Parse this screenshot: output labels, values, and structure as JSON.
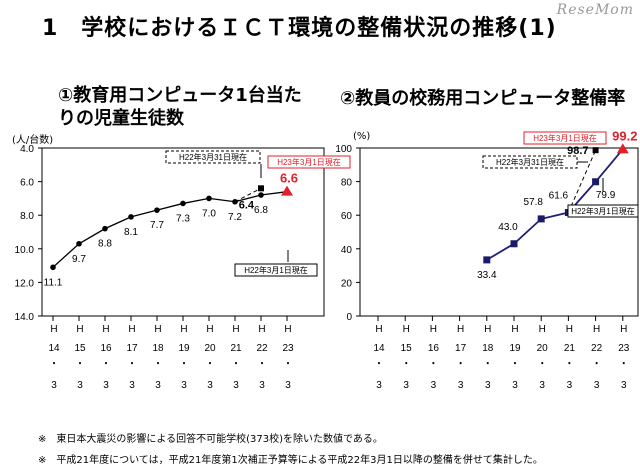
{
  "page": {
    "title": "1　学校におけるＩＣＴ環境の整備状況の推移(1)",
    "logo": "ReseMom",
    "notes": [
      "※　東日本大震災の影響による回答不可能学校(373校)を除いた数値である。",
      "※　平成21年度については，平成21年度第1次補正予算等による平成22年3月1日以降の整備を併せて集計した。"
    ]
  },
  "chart_data": [
    {
      "type": "line",
      "title": "①教育用コンピュータ1台当たりの児童生徒数",
      "ylabel": "(人/台数)",
      "ylim": [
        4.0,
        14.0
      ],
      "y_reversed": true,
      "yticks": [
        "4.0",
        "6.0",
        "8.0",
        "10.0",
        "12.0",
        "14.0"
      ],
      "categories": [
        "H14・3",
        "H15・3",
        "H16・3",
        "H17・3",
        "H18・3",
        "H19・3",
        "H20・3",
        "H21・3",
        "H22・3",
        "H23・3"
      ],
      "category_labels": [
        [
          "H",
          "14",
          "・",
          "3"
        ],
        [
          "H",
          "15",
          "・",
          "3"
        ],
        [
          "H",
          "16",
          "・",
          "3"
        ],
        [
          "H",
          "17",
          "・",
          "3"
        ],
        [
          "H",
          "18",
          "・",
          "3"
        ],
        [
          "H",
          "19",
          "・",
          "3"
        ],
        [
          "H",
          "20",
          "・",
          "3"
        ],
        [
          "H",
          "21",
          "・",
          "3"
        ],
        [
          "H",
          "22",
          "・",
          "3"
        ],
        [
          "H",
          "23",
          "・",
          "3"
        ]
      ],
      "series": [
        {
          "values": [
            11.1,
            9.7,
            8.8,
            8.1,
            7.7,
            7.3,
            7.0,
            7.2,
            6.8,
            6.6
          ],
          "labels": [
            "11.1",
            "9.7",
            "8.8",
            "8.1",
            "7.7",
            "7.3",
            "7.0",
            "7.2",
            "6.8",
            "6.6"
          ]
        }
      ],
      "alt_point": {
        "category": "H22・3",
        "value": 6.4,
        "label": "6.4"
      },
      "callouts": [
        "H22年3月31日現在",
        "H23年3月1日現在",
        "H22年3月1日現在"
      ]
    },
    {
      "type": "line",
      "title": "②教員の校務用コンピュータ整備率",
      "ylabel": "(%)",
      "ylim": [
        0,
        100
      ],
      "yticks": [
        "0",
        "20",
        "40",
        "60",
        "80",
        "100"
      ],
      "categories": [
        "H14・3",
        "H15・3",
        "H16・3",
        "H17・3",
        "H18・3",
        "H19・3",
        "H20・3",
        "H21・3",
        "H22・3",
        "H23・3"
      ],
      "category_labels": [
        [
          "H",
          "14",
          "・",
          "3"
        ],
        [
          "H",
          "15",
          "・",
          "3"
        ],
        [
          "H",
          "16",
          "・",
          "3"
        ],
        [
          "H",
          "17",
          "・",
          "3"
        ],
        [
          "H",
          "18",
          "・",
          "3"
        ],
        [
          "H",
          "19",
          "・",
          "3"
        ],
        [
          "H",
          "20",
          "・",
          "3"
        ],
        [
          "H",
          "21",
          "・",
          "3"
        ],
        [
          "H",
          "22",
          "・",
          "3"
        ],
        [
          "H",
          "23",
          "・",
          "3"
        ]
      ],
      "series": [
        {
          "values": [
            null,
            null,
            null,
            null,
            33.4,
            43.0,
            57.8,
            61.6,
            79.9,
            99.2
          ],
          "labels": [
            null,
            null,
            null,
            null,
            "33.4",
            "43.0",
            "57.8",
            "61.6",
            "79.9",
            "99.2"
          ]
        }
      ],
      "alt_point": {
        "category": "H22・3",
        "value": 98.7,
        "label": "98.7"
      },
      "callouts": [
        "H23年3月1日現在",
        "H22年3月31日現在",
        "H22年3月1日現在"
      ]
    }
  ],
  "colors": {
    "line1": "#000000",
    "marker1": "#000000",
    "line2": "#1f1f7a",
    "marker2": "#1a1a66",
    "highlight": "#e0202a",
    "frame": "#000000"
  }
}
